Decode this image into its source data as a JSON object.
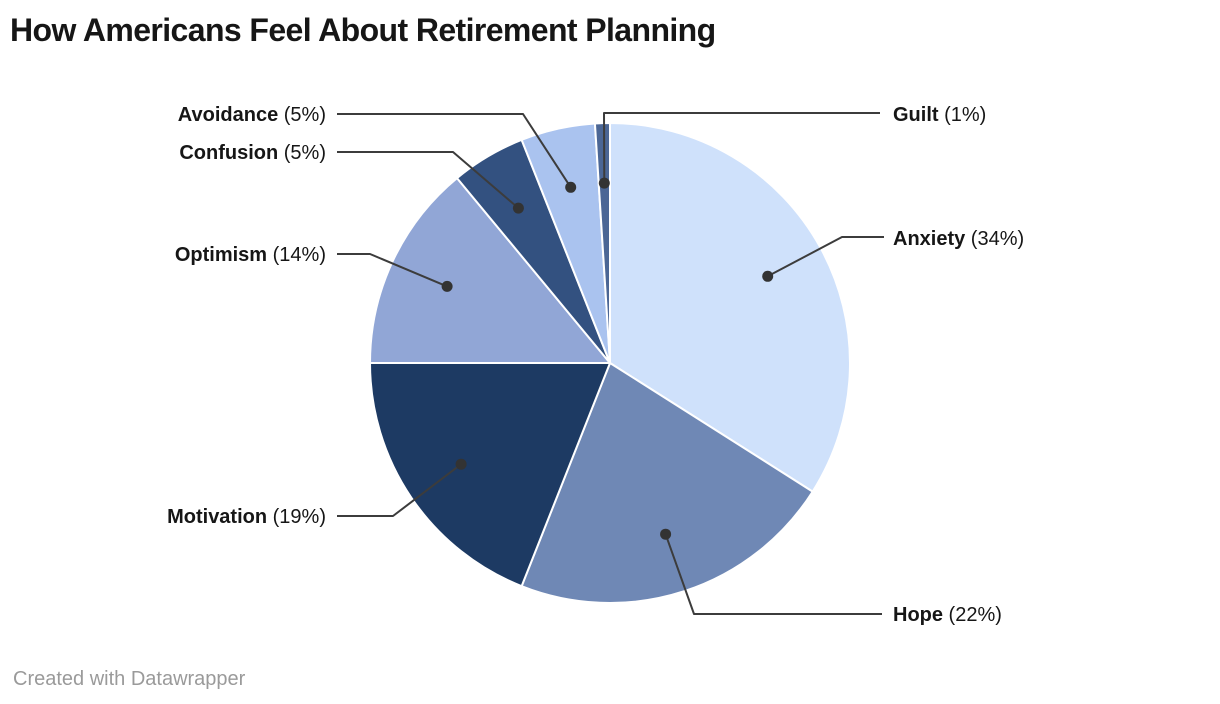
{
  "title": "How Americans Feel About Retirement Planning",
  "attribution": "Created with Datawrapper",
  "colors": {
    "background": "#ffffff",
    "title_text": "#161616",
    "label_text": "#161616",
    "leader_line": "#3c3c3c",
    "callout_dot": "#333333",
    "slice_border": "#ffffff",
    "attribution_text": "#9a9a9a"
  },
  "chart_data": {
    "type": "pie",
    "title": "How Americans Feel About Retirement Planning",
    "unit": "%",
    "start_angle_deg": 0,
    "direction": "clockwise",
    "legend_position": "callout-labels",
    "slices": [
      {
        "label": "Anxiety",
        "value": 34,
        "pct_text": "(34%)",
        "color": "#cfe1fb"
      },
      {
        "label": "Hope",
        "value": 22,
        "pct_text": "(22%)",
        "color": "#6f88b5"
      },
      {
        "label": "Motivation",
        "value": 19,
        "pct_text": "(19%)",
        "color": "#1d3a63"
      },
      {
        "label": "Optimism",
        "value": 14,
        "pct_text": "(14%)",
        "color": "#91a6d6"
      },
      {
        "label": "Confusion",
        "value": 5,
        "pct_text": "(5%)",
        "color": "#335180"
      },
      {
        "label": "Avoidance",
        "value": 5,
        "pct_text": "(5%)",
        "color": "#aac3ef"
      },
      {
        "label": "Guilt",
        "value": 1,
        "pct_text": "(1%)",
        "color": "#4b6695"
      }
    ]
  }
}
